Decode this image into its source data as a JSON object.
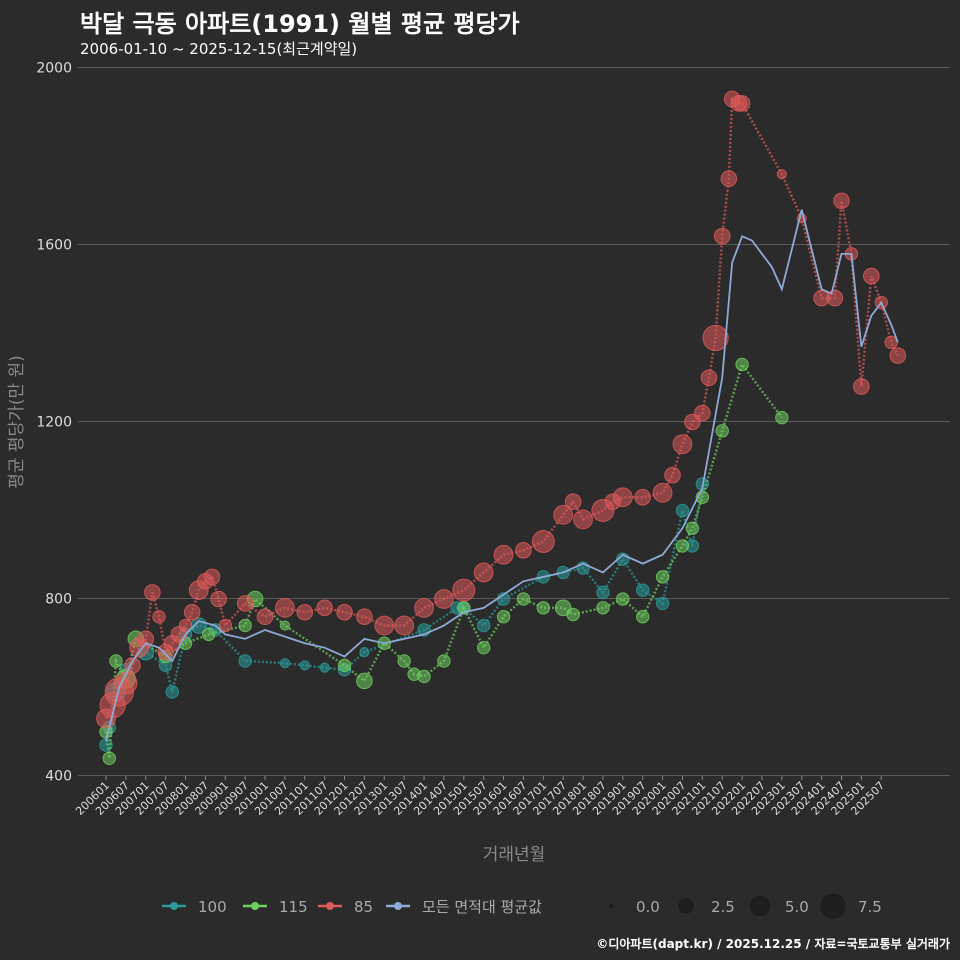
{
  "chart_data": {
    "type": "scatter",
    "title": "박달 극동 아파트(1991) 월별 평균 평당가",
    "subtitle": "2006-01-10 ~ 2025-12-15(최근계약일)",
    "xlabel": "거래년월",
    "ylabel": "평균 평당가(만 원)",
    "ylim": [
      400,
      2000
    ],
    "yticks": [
      400,
      800,
      1200,
      1600,
      2000
    ],
    "xticks": [
      "200601",
      "200607",
      "200701",
      "200707",
      "200801",
      "200807",
      "200901",
      "200907",
      "201001",
      "201007",
      "201101",
      "201107",
      "201201",
      "201207",
      "201301",
      "201307",
      "201401",
      "201407",
      "201501",
      "201507",
      "201601",
      "201607",
      "201701",
      "201707",
      "201801",
      "201807",
      "201901",
      "201907",
      "202001",
      "202007",
      "202101",
      "202107",
      "202201",
      "202207",
      "202301",
      "202307",
      "202401",
      "202407",
      "202501",
      "202507"
    ],
    "size_legend": {
      "title": "",
      "values": [
        "0.0",
        "2.5",
        "5.0",
        "7.5"
      ]
    },
    "series": [
      {
        "name": "100",
        "color": "#2a9d9a",
        "points": [
          [
            "200601",
            470,
            2
          ],
          [
            "200602",
            510,
            2
          ],
          [
            "200604",
            590,
            4
          ],
          [
            "200607",
            640,
            2
          ],
          [
            "200701",
            680,
            3
          ],
          [
            "200707",
            650,
            2
          ],
          [
            "200709",
            590,
            2
          ],
          [
            "200801",
            720,
            2
          ],
          [
            "200805",
            740,
            3
          ],
          [
            "200810",
            730,
            2
          ],
          [
            "200907",
            660,
            2
          ],
          [
            "201007",
            655,
            1
          ],
          [
            "201101",
            650,
            1
          ],
          [
            "201107",
            645,
            1
          ],
          [
            "201201",
            640,
            2
          ],
          [
            "201207",
            680,
            1
          ],
          [
            "201401",
            730,
            2
          ],
          [
            "201411",
            780,
            2
          ],
          [
            "201501",
            780,
            2
          ],
          [
            "201507",
            740,
            2
          ],
          [
            "201601",
            800,
            2
          ],
          [
            "201701",
            850,
            2
          ],
          [
            "201707",
            860,
            2
          ],
          [
            "201801",
            870,
            2
          ],
          [
            "201807",
            815,
            2
          ],
          [
            "201901",
            890,
            2
          ],
          [
            "201907",
            820,
            2
          ],
          [
            "202001",
            790,
            2
          ],
          [
            "202007",
            1000,
            2
          ],
          [
            "202010",
            920,
            2
          ],
          [
            "202101",
            1060,
            2
          ]
        ]
      },
      {
        "name": "115",
        "color": "#6fcf5f",
        "points": [
          [
            "200601",
            500,
            2
          ],
          [
            "200602",
            440,
            2
          ],
          [
            "200604",
            660,
            2
          ],
          [
            "200607",
            620,
            4
          ],
          [
            "200610",
            710,
            3
          ],
          [
            "200707",
            670,
            2
          ],
          [
            "200801",
            700,
            2
          ],
          [
            "200808",
            720,
            2
          ],
          [
            "200907",
            740,
            2
          ],
          [
            "200910",
            800,
            3
          ],
          [
            "201007",
            740,
            1
          ],
          [
            "201201",
            650,
            2
          ],
          [
            "201207",
            615,
            3
          ],
          [
            "201301",
            700,
            2
          ],
          [
            "201307",
            660,
            2
          ],
          [
            "201310",
            630,
            2
          ],
          [
            "201401",
            625,
            2
          ],
          [
            "201407",
            660,
            2
          ],
          [
            "201501",
            780,
            2
          ],
          [
            "201507",
            690,
            2
          ],
          [
            "201601",
            760,
            2
          ],
          [
            "201607",
            800,
            2
          ],
          [
            "201701",
            780,
            2
          ],
          [
            "201707",
            780,
            3
          ],
          [
            "201710",
            765,
            2
          ],
          [
            "201807",
            780,
            2
          ],
          [
            "201901",
            800,
            2
          ],
          [
            "201907",
            760,
            2
          ],
          [
            "202001",
            850,
            2
          ],
          [
            "202007",
            920,
            2
          ],
          [
            "202010",
            960,
            2
          ],
          [
            "202101",
            1030,
            2
          ],
          [
            "202107",
            1180,
            2
          ],
          [
            "202201",
            1330,
            2
          ],
          [
            "202301",
            1210,
            2
          ]
        ]
      },
      {
        "name": "85",
        "color": "#e05a5a",
        "points": [
          [
            "200601",
            530,
            4
          ],
          [
            "200603",
            560,
            6
          ],
          [
            "200605",
            590,
            7
          ],
          [
            "200607",
            610,
            5
          ],
          [
            "200609",
            650,
            3
          ],
          [
            "200611",
            690,
            4
          ],
          [
            "200701",
            710,
            3
          ],
          [
            "200703",
            815,
            3
          ],
          [
            "200705",
            760,
            2
          ],
          [
            "200707",
            680,
            3
          ],
          [
            "200709",
            700,
            3
          ],
          [
            "200711",
            720,
            3
          ],
          [
            "200801",
            740,
            2
          ],
          [
            "200803",
            770,
            3
          ],
          [
            "200805",
            820,
            4
          ],
          [
            "200807",
            840,
            3
          ],
          [
            "200809",
            850,
            3
          ],
          [
            "200811",
            800,
            3
          ],
          [
            "200901",
            740,
            2
          ],
          [
            "200907",
            790,
            3
          ],
          [
            "201001",
            760,
            3
          ],
          [
            "201007",
            780,
            4
          ],
          [
            "201101",
            770,
            3
          ],
          [
            "201107",
            780,
            3
          ],
          [
            "201201",
            770,
            3
          ],
          [
            "201207",
            760,
            3
          ],
          [
            "201301",
            740,
            4
          ],
          [
            "201307",
            740,
            4
          ],
          [
            "201401",
            780,
            4
          ],
          [
            "201407",
            800,
            4
          ],
          [
            "201501",
            820,
            5
          ],
          [
            "201507",
            860,
            4
          ],
          [
            "201601",
            900,
            4
          ],
          [
            "201607",
            910,
            3
          ],
          [
            "201701",
            930,
            5
          ],
          [
            "201707",
            990,
            4
          ],
          [
            "201710",
            1020,
            3
          ],
          [
            "201801",
            980,
            4
          ],
          [
            "201807",
            1000,
            5
          ],
          [
            "201810",
            1020,
            3
          ],
          [
            "201901",
            1030,
            4
          ],
          [
            "201907",
            1030,
            3
          ],
          [
            "202001",
            1040,
            4
          ],
          [
            "202004",
            1080,
            3
          ],
          [
            "202007",
            1150,
            4
          ],
          [
            "202010",
            1200,
            3
          ],
          [
            "202101",
            1220,
            3
          ],
          [
            "202103",
            1300,
            3
          ],
          [
            "202105",
            1390,
            6
          ],
          [
            "202107",
            1620,
            3
          ],
          [
            "202109",
            1750,
            3
          ],
          [
            "202110",
            1930,
            3
          ],
          [
            "202112",
            1920,
            3
          ],
          [
            "202201",
            1920,
            3
          ],
          [
            "202301",
            1760,
            1
          ],
          [
            "202307",
            1660,
            1
          ],
          [
            "202401",
            1480,
            3
          ],
          [
            "202405",
            1480,
            3
          ],
          [
            "202407",
            1700,
            3
          ],
          [
            "202410",
            1580,
            2
          ],
          [
            "202501",
            1280,
            3
          ],
          [
            "202504",
            1530,
            3
          ],
          [
            "202507",
            1470,
            2
          ],
          [
            "202510",
            1380,
            2
          ],
          [
            "202512",
            1350,
            3
          ]
        ]
      },
      {
        "name": "모든 면적대 평균값",
        "color": "#8fa9d6",
        "line": [
          [
            "200601",
            480
          ],
          [
            "200605",
            600
          ],
          [
            "200609",
            660
          ],
          [
            "200701",
            700
          ],
          [
            "200705",
            690
          ],
          [
            "200709",
            660
          ],
          [
            "200801",
            720
          ],
          [
            "200805",
            750
          ],
          [
            "200810",
            740
          ],
          [
            "200901",
            720
          ],
          [
            "200907",
            710
          ],
          [
            "201001",
            730
          ],
          [
            "201007",
            715
          ],
          [
            "201101",
            700
          ],
          [
            "201107",
            690
          ],
          [
            "201201",
            670
          ],
          [
            "201207",
            710
          ],
          [
            "201301",
            700
          ],
          [
            "201307",
            710
          ],
          [
            "201401",
            720
          ],
          [
            "201407",
            740
          ],
          [
            "201501",
            770
          ],
          [
            "201507",
            780
          ],
          [
            "201601",
            810
          ],
          [
            "201607",
            840
          ],
          [
            "201701",
            850
          ],
          [
            "201707",
            860
          ],
          [
            "201801",
            880
          ],
          [
            "201807",
            860
          ],
          [
            "201901",
            900
          ],
          [
            "201907",
            880
          ],
          [
            "202001",
            900
          ],
          [
            "202007",
            960
          ],
          [
            "202101",
            1050
          ],
          [
            "202107",
            1300
          ],
          [
            "202110",
            1560
          ],
          [
            "202201",
            1620
          ],
          [
            "202204",
            1610
          ],
          [
            "202210",
            1550
          ],
          [
            "202301",
            1500
          ],
          [
            "202307",
            1680
          ],
          [
            "202401",
            1500
          ],
          [
            "202404",
            1490
          ],
          [
            "202407",
            1580
          ],
          [
            "202410",
            1580
          ],
          [
            "202501",
            1370
          ],
          [
            "202504",
            1440
          ],
          [
            "202507",
            1470
          ],
          [
            "202510",
            1420
          ],
          [
            "202512",
            1380
          ]
        ]
      }
    ]
  },
  "legend_labels": [
    "100",
    "115",
    "85",
    "모든 면적대 평균값"
  ],
  "footer": "©디아파트(dapt.kr) / 2025.12.25 / 자료=국토교통부 실거래가"
}
